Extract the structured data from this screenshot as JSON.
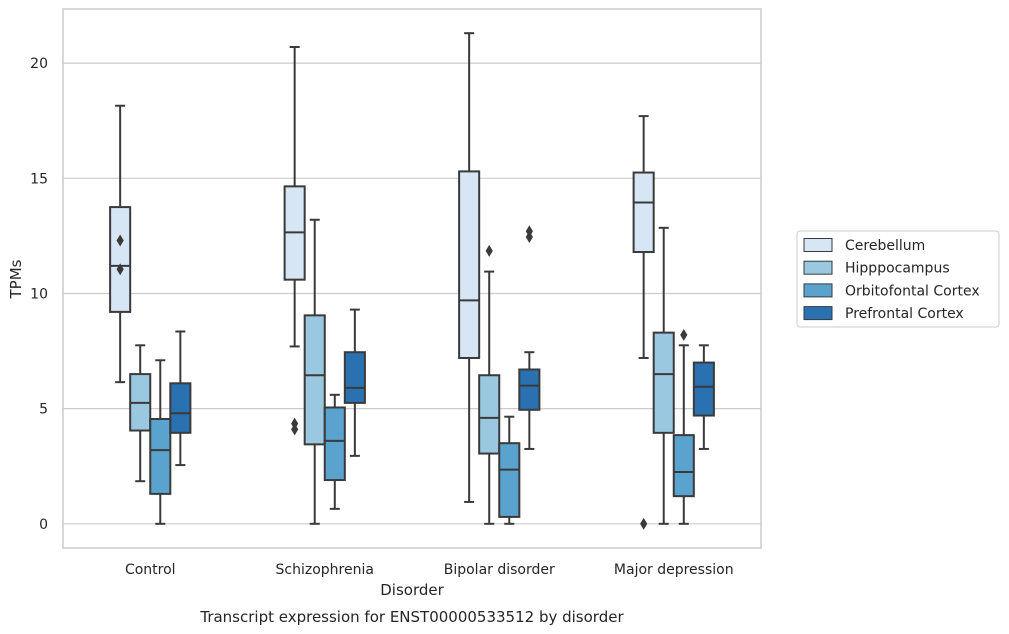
{
  "chart_data": {
    "type": "boxplot",
    "caption": "Transcript expression for ENST00000533512 by disorder",
    "xlabel": "Disorder",
    "ylabel": "TPMs",
    "ylim": [
      -1.05,
      22.35
    ],
    "yticks": [
      0,
      5,
      10,
      15,
      20
    ],
    "grid": "horizontal",
    "legend_position": "right",
    "categories": [
      "Control",
      "Schizophrenia",
      "Bipolar disorder",
      "Major depression"
    ],
    "series": [
      {
        "name": "Cerebellum",
        "color": "#d6e6f4",
        "boxes": [
          {
            "whislo": 6.15,
            "q1": 9.2,
            "med": 11.2,
            "q3": 13.75,
            "whishi": 18.15,
            "fliers": [
              11.05,
              12.3
            ]
          },
          {
            "whislo": 7.7,
            "q1": 10.6,
            "med": 12.65,
            "q3": 14.65,
            "whishi": 20.7,
            "fliers": [
              4.1,
              4.35
            ]
          },
          {
            "whislo": 0.95,
            "q1": 7.2,
            "med": 9.7,
            "q3": 15.3,
            "whishi": 21.3,
            "fliers": []
          },
          {
            "whislo": 7.2,
            "q1": 11.8,
            "med": 13.95,
            "q3": 15.25,
            "whishi": 17.7,
            "fliers": [
              0.0
            ]
          }
        ]
      },
      {
        "name": "Hipppocampus",
        "color": "#9ac8e0",
        "boxes": [
          {
            "whislo": 1.85,
            "q1": 4.05,
            "med": 5.25,
            "q3": 6.5,
            "whishi": 7.75,
            "fliers": []
          },
          {
            "whislo": 0.0,
            "q1": 3.45,
            "med": 6.45,
            "q3": 9.05,
            "whishi": 13.2,
            "fliers": []
          },
          {
            "whislo": 0.0,
            "q1": 3.05,
            "med": 4.6,
            "q3": 6.45,
            "whishi": 10.95,
            "fliers": [
              11.85
            ]
          },
          {
            "whislo": 0.0,
            "q1": 3.95,
            "med": 6.5,
            "q3": 8.3,
            "whishi": 12.85,
            "fliers": []
          }
        ]
      },
      {
        "name": "Orbitofontal Cortex",
        "color": "#5ba3cf",
        "boxes": [
          {
            "whislo": 0.0,
            "q1": 1.3,
            "med": 3.2,
            "q3": 4.55,
            "whishi": 7.1,
            "fliers": []
          },
          {
            "whislo": 0.65,
            "q1": 1.9,
            "med": 3.6,
            "q3": 5.05,
            "whishi": 5.6,
            "fliers": []
          },
          {
            "whislo": 0.0,
            "q1": 0.3,
            "med": 2.35,
            "q3": 3.5,
            "whishi": 4.65,
            "fliers": []
          },
          {
            "whislo": 0.0,
            "q1": 1.2,
            "med": 2.25,
            "q3": 3.85,
            "whishi": 7.75,
            "fliers": [
              8.2
            ]
          }
        ]
      },
      {
        "name": "Prefrontal Cortex",
        "color": "#2a71b2",
        "boxes": [
          {
            "whislo": 2.55,
            "q1": 3.95,
            "med": 4.8,
            "q3": 6.1,
            "whishi": 8.35,
            "fliers": []
          },
          {
            "whislo": 2.95,
            "q1": 5.25,
            "med": 5.9,
            "q3": 7.45,
            "whishi": 9.3,
            "fliers": []
          },
          {
            "whislo": 3.25,
            "q1": 4.95,
            "med": 6.0,
            "q3": 6.7,
            "whishi": 7.45,
            "fliers": [
              12.45,
              12.7
            ]
          },
          {
            "whislo": 3.25,
            "q1": 4.7,
            "med": 5.95,
            "q3": 7.0,
            "whishi": 7.75,
            "fliers": []
          }
        ]
      }
    ]
  }
}
